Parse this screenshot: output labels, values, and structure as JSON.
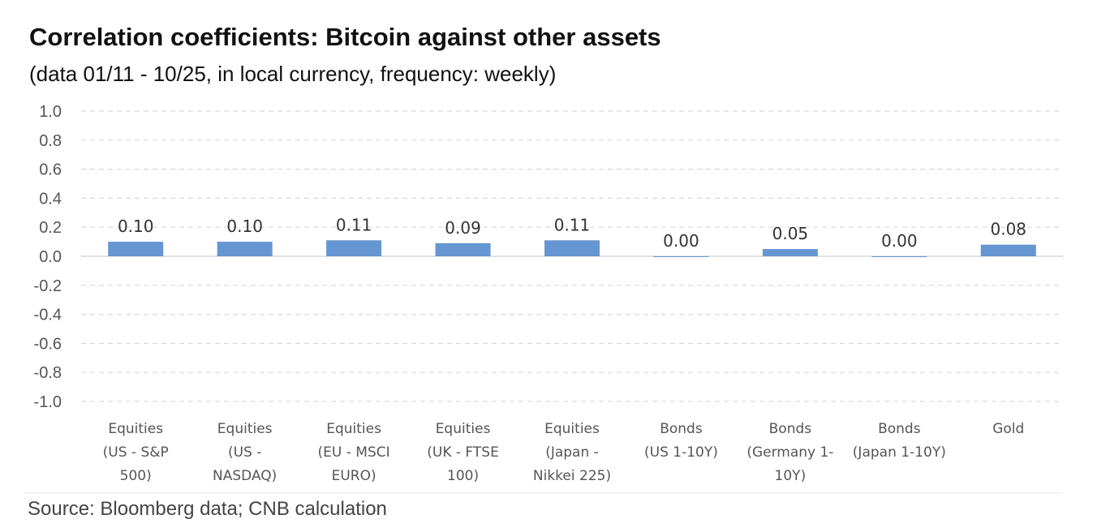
{
  "chart_data": {
    "type": "bar",
    "title": "Correlation coefficients: Bitcoin against other assets",
    "subtitle": "(data 01/11 - 10/25, in local currency, frequency: weekly)",
    "source": "Source: Bloomberg data; CNB calculation",
    "categories": [
      [
        "Equities",
        "(US - S&P",
        "500)"
      ],
      [
        "Equities",
        "(US -",
        "NASDAQ)"
      ],
      [
        "Equities",
        "(EU - MSCI",
        "EURO)"
      ],
      [
        "Equities",
        "(UK - FTSE",
        "100)"
      ],
      [
        "Equities",
        "(Japan  -",
        "Nikkei 225)"
      ],
      [
        "Bonds",
        "(US 1-10Y)"
      ],
      [
        "Bonds",
        "(Germany 1-",
        "10Y)"
      ],
      [
        "Bonds",
        "(Japan 1-10Y)"
      ],
      [
        "Gold"
      ]
    ],
    "values": [
      0.1,
      0.1,
      0.11,
      0.09,
      0.11,
      0.0,
      0.05,
      0.0,
      0.08
    ],
    "data_labels": [
      "0.10",
      "0.10",
      "0.11",
      "0.09",
      "0.11",
      "0.00",
      "0.05",
      "0.00",
      "0.08"
    ],
    "y_ticks": [
      "1.0",
      "0.8",
      "0.6",
      "0.4",
      "0.2",
      "0.0",
      "-0.2",
      "-0.4",
      "-0.6",
      "-0.8",
      "-1.0"
    ],
    "ylim": [
      -1.0,
      1.0
    ],
    "grid": true,
    "legend": "none",
    "bar_color": "#6696d2"
  }
}
